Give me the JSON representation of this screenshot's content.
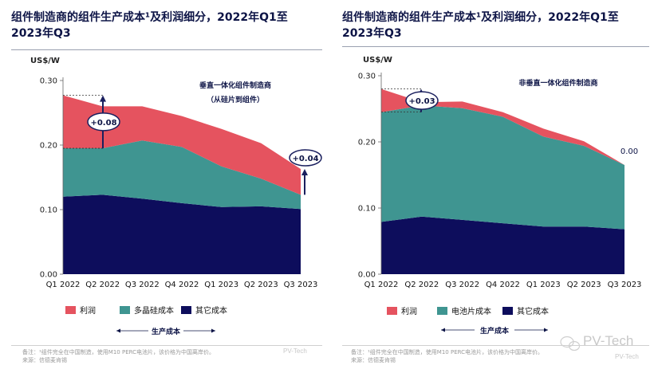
{
  "charts": [
    {
      "title_line1": "组件制造商的组件生产成本¹及利润细分，2022年Q1至",
      "title_line2": "2023年Q3",
      "unit": "US$/W",
      "annotation_line1": "垂直一体化组件制造商",
      "annotation_line2": "（从硅片到组件）",
      "callouts": [
        "+0.08",
        "+0.04"
      ],
      "legend": [
        "利润",
        "多晶硅成本",
        "其它成本"
      ],
      "axis_group_label": "生产成本",
      "footnote_line1": "备注：¹组件完全在中国制造，使用M10 PERC电池片，该价格为中国离岸价。",
      "footnote_line2": "来源：信德麦肯锡"
    },
    {
      "title_line1": "组件制造商的组件生产成本¹及利润细分，2022年Q1至",
      "title_line2": "2023年Q3",
      "unit": "US$/W",
      "annotation_line1": "非垂直一体化组件制造商",
      "callouts": [
        "+0.03",
        "0.00"
      ],
      "legend": [
        "利润",
        "电池片成本",
        "其它成本"
      ],
      "axis_group_label": "生产成本",
      "footnote_line1": "备注：¹组件完全在中国制造，使用M10 PERC电池片，该价格为中国离岸价。",
      "footnote_line2": "来源：信德麦肯锡"
    }
  ],
  "watermark": {
    "brand": "PV-Tech",
    "small": "PV-Tech",
    "wechat_label": "PV-Tech"
  },
  "colors": {
    "profit": "#e5535f",
    "polysilicon": "#3f9591",
    "other": "#0d0d5c",
    "title": "#0d1446",
    "callout_ring": "#1a1f5e"
  },
  "chart_data": [
    {
      "type": "area",
      "stacked": true,
      "title": "组件制造商的组件生产成本¹及利润细分，2022年Q1至2023年Q3",
      "subtitle": "垂直一体化组件制造商（从硅片到组件）",
      "xlabel": "",
      "ylabel": "US$/W",
      "ylim": [
        0,
        0.3
      ],
      "yticks": [
        "0.00",
        "0.10",
        "0.20",
        "0.30"
      ],
      "grid": false,
      "legend_position": "bottom",
      "categories": [
        "Q1 2022",
        "Q2 2022",
        "Q3 2022",
        "Q4 2022",
        "Q1 2023",
        "Q2 2023",
        "Q3 2023"
      ],
      "series": [
        {
          "name": "其它成本",
          "values": [
            0.12,
            0.123,
            0.117,
            0.11,
            0.104,
            0.105,
            0.101
          ]
        },
        {
          "name": "多晶硅成本",
          "values": [
            0.075,
            0.072,
            0.09,
            0.087,
            0.063,
            0.043,
            0.022
          ]
        },
        {
          "name": "利润",
          "values": [
            0.082,
            0.065,
            0.053,
            0.048,
            0.058,
            0.055,
            0.04
          ]
        }
      ],
      "annotations": [
        {
          "text": "+0.08",
          "category": "Q1 2022"
        },
        {
          "text": "+0.04",
          "category": "Q3 2023"
        }
      ]
    },
    {
      "type": "area",
      "stacked": true,
      "title": "组件制造商的组件生产成本¹及利润细分，2022年Q1至2023年Q3",
      "subtitle": "非垂直一体化组件制造商",
      "xlabel": "",
      "ylabel": "US$/W",
      "ylim": [
        0,
        0.3
      ],
      "yticks": [
        "0.00",
        "0.10",
        "0.20",
        "0.30"
      ],
      "grid": false,
      "legend_position": "bottom",
      "categories": [
        "Q1 2022",
        "Q2 2022",
        "Q3 2022",
        "Q4 2022",
        "Q1 2023",
        "Q2 2023",
        "Q3 2023"
      ],
      "series": [
        {
          "name": "其它成本",
          "values": [
            0.079,
            0.087,
            0.082,
            0.077,
            0.072,
            0.072,
            0.068
          ]
        },
        {
          "name": "电池片成本",
          "values": [
            0.166,
            0.168,
            0.169,
            0.161,
            0.136,
            0.122,
            0.097
          ]
        },
        {
          "name": "利润",
          "values": [
            0.035,
            0.005,
            0.01,
            0.007,
            0.012,
            0.007,
            0.0
          ]
        }
      ],
      "annotations": [
        {
          "text": "+0.03",
          "category": "Q1 2022"
        },
        {
          "text": "0.00",
          "category": "Q3 2023"
        }
      ]
    }
  ]
}
